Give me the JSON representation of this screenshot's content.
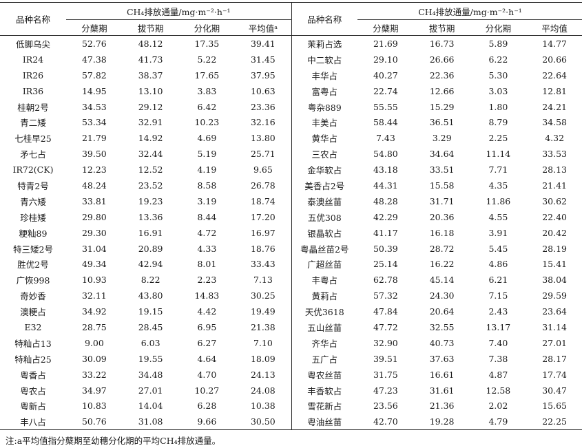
{
  "header": {
    "variety_label": "品种名称",
    "flux_label": "CH₄排放通量/mg·m⁻²·h⁻¹",
    "col_tillering": "分蘖期",
    "col_jointing": "拔节期",
    "col_differentiation": "分化期",
    "col_mean_left": "平均值ᵃ",
    "col_mean_right": "平均值"
  },
  "left_rows": [
    [
      "低脚乌尖",
      "52.76",
      "48.12",
      "17.35",
      "39.41"
    ],
    [
      "IR24",
      "47.38",
      "41.73",
      "5.22",
      "31.45"
    ],
    [
      "IR26",
      "57.82",
      "38.37",
      "17.65",
      "37.95"
    ],
    [
      "IR36",
      "14.95",
      "13.10",
      "3.83",
      "10.63"
    ],
    [
      "桂朝2号",
      "34.53",
      "29.12",
      "6.42",
      "23.36"
    ],
    [
      "青二矮",
      "53.34",
      "32.91",
      "10.23",
      "32.16"
    ],
    [
      "七桂早25",
      "21.79",
      "14.92",
      "4.69",
      "13.80"
    ],
    [
      "矛七占",
      "39.50",
      "32.44",
      "5.19",
      "25.71"
    ],
    [
      "IR72(CK)",
      "12.23",
      "12.52",
      "4.19",
      "9.65"
    ],
    [
      "特青2号",
      "48.24",
      "23.52",
      "8.58",
      "26.78"
    ],
    [
      "青六矮",
      "33.81",
      "19.23",
      "3.19",
      "18.74"
    ],
    [
      "珍桂矮",
      "29.80",
      "13.36",
      "8.44",
      "17.20"
    ],
    [
      "粳籼89",
      "29.30",
      "16.91",
      "4.72",
      "16.97"
    ],
    [
      "特三矮2号",
      "31.04",
      "20.89",
      "4.33",
      "18.76"
    ],
    [
      "胜优2号",
      "49.34",
      "42.94",
      "8.01",
      "33.43"
    ],
    [
      "广恢998",
      "10.93",
      "8.22",
      "2.23",
      "7.13"
    ],
    [
      "奇妙香",
      "32.11",
      "43.80",
      "14.83",
      "30.25"
    ],
    [
      "澳粳占",
      "34.92",
      "19.15",
      "4.42",
      "19.49"
    ],
    [
      "E32",
      "28.75",
      "28.45",
      "6.95",
      "21.38"
    ],
    [
      "特籼占13",
      "9.00",
      "6.03",
      "6.27",
      "7.10"
    ],
    [
      "特籼占25",
      "30.09",
      "19.55",
      "4.64",
      "18.09"
    ],
    [
      "粤香占",
      "33.22",
      "34.48",
      "4.70",
      "24.13"
    ],
    [
      "粤农占",
      "34.97",
      "27.01",
      "10.27",
      "24.08"
    ],
    [
      "粤新占",
      "10.83",
      "14.04",
      "6.28",
      "10.38"
    ],
    [
      "丰八占",
      "50.76",
      "31.08",
      "9.66",
      "30.50"
    ]
  ],
  "right_rows": [
    [
      "茉莉占选",
      "21.69",
      "16.73",
      "5.89",
      "14.77"
    ],
    [
      "中二软占",
      "29.10",
      "26.66",
      "6.22",
      "20.66"
    ],
    [
      "丰华占",
      "40.27",
      "22.36",
      "5.30",
      "22.64"
    ],
    [
      "富粤占",
      "22.74",
      "12.66",
      "3.03",
      "12.81"
    ],
    [
      "粤杂889",
      "55.55",
      "15.29",
      "1.80",
      "24.21"
    ],
    [
      "丰美占",
      "58.44",
      "36.51",
      "8.79",
      "34.58"
    ],
    [
      "黄华占",
      "7.43",
      "3.29",
      "2.25",
      "4.32"
    ],
    [
      "三农占",
      "54.80",
      "34.64",
      "11.14",
      "33.53"
    ],
    [
      "金华软占",
      "43.18",
      "33.51",
      "7.71",
      "28.13"
    ],
    [
      "美香占2号",
      "44.31",
      "15.58",
      "4.35",
      "21.41"
    ],
    [
      "泰澳丝苗",
      "48.28",
      "31.71",
      "11.86",
      "30.62"
    ],
    [
      "五优308",
      "42.29",
      "20.36",
      "4.55",
      "22.40"
    ],
    [
      "银晶软占",
      "41.17",
      "16.18",
      "3.91",
      "20.42"
    ],
    [
      "粤晶丝苗2号",
      "50.39",
      "28.72",
      "5.45",
      "28.19"
    ],
    [
      "广超丝苗",
      "25.14",
      "16.22",
      "4.86",
      "15.41"
    ],
    [
      "丰粤占",
      "62.78",
      "45.14",
      "6.21",
      "38.04"
    ],
    [
      "黄莉占",
      "57.32",
      "24.30",
      "7.15",
      "29.59"
    ],
    [
      "天优3618",
      "47.84",
      "20.64",
      "2.43",
      "23.64"
    ],
    [
      "五山丝苗",
      "47.72",
      "32.55",
      "13.17",
      "31.14"
    ],
    [
      "齐华占",
      "32.90",
      "40.73",
      "7.40",
      "27.01"
    ],
    [
      "五广占",
      "39.51",
      "37.63",
      "7.38",
      "28.17"
    ],
    [
      "粤农丝苗",
      "31.75",
      "16.61",
      "4.87",
      "17.74"
    ],
    [
      "丰香软占",
      "47.23",
      "31.61",
      "12.58",
      "30.47"
    ],
    [
      "雪花新占",
      "23.56",
      "21.36",
      "2.02",
      "15.65"
    ],
    [
      "粤油丝苗",
      "42.70",
      "19.28",
      "4.79",
      "22.25"
    ]
  ],
  "note": "注:a平均值指分蘖期至幼穗分化期的平均CH₄排放通量。"
}
